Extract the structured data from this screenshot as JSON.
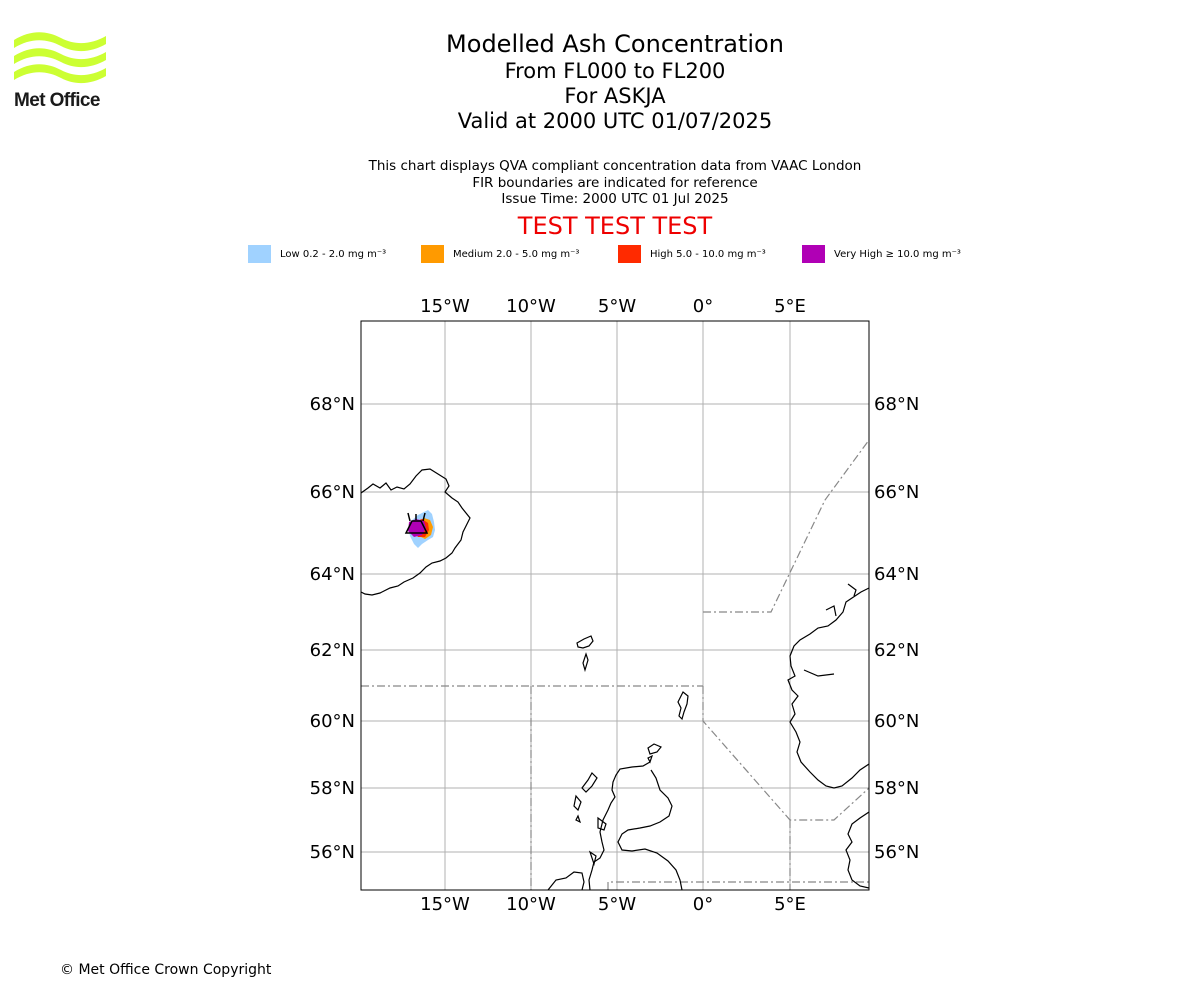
{
  "logo": {
    "text": "Met Office",
    "wave_color": "#ccff33"
  },
  "title": {
    "main": "Modelled Ash Concentration",
    "levels": "From FL000 to FL200",
    "volcano": "For ASKJA",
    "valid": "Valid at 2000 UTC 01/07/2025"
  },
  "description": {
    "line1": "This chart displays QVA compliant concentration data from VAAC London",
    "line2": "FIR boundaries are indicated for reference",
    "line3": "Issue Time: 2000 UTC 01 Jul 2025"
  },
  "test_banner": "TEST TEST TEST",
  "legend": [
    {
      "label": "Low 0.2 - 2.0 mg m⁻³",
      "color": "#a0d2ff"
    },
    {
      "label": "Medium 2.0 - 5.0 mg m⁻³",
      "color": "#ff9a00"
    },
    {
      "label": "High 5.0 - 10.0 mg m⁻³",
      "color": "#ff2a00"
    },
    {
      "label": "Very High  ≥  10.0 mg m⁻³",
      "color": "#b000b5"
    }
  ],
  "map": {
    "lon_ticks": [
      "15°W",
      "10°W",
      "5°W",
      "0°",
      "5°E"
    ],
    "lat_ticks": [
      "68°N",
      "66°N",
      "64°N",
      "62°N",
      "60°N",
      "58°N",
      "56°N"
    ],
    "volcano_location": {
      "lat": 65.05,
      "lon": -16.75
    }
  },
  "copyright": "© Met Office Crown Copyright"
}
